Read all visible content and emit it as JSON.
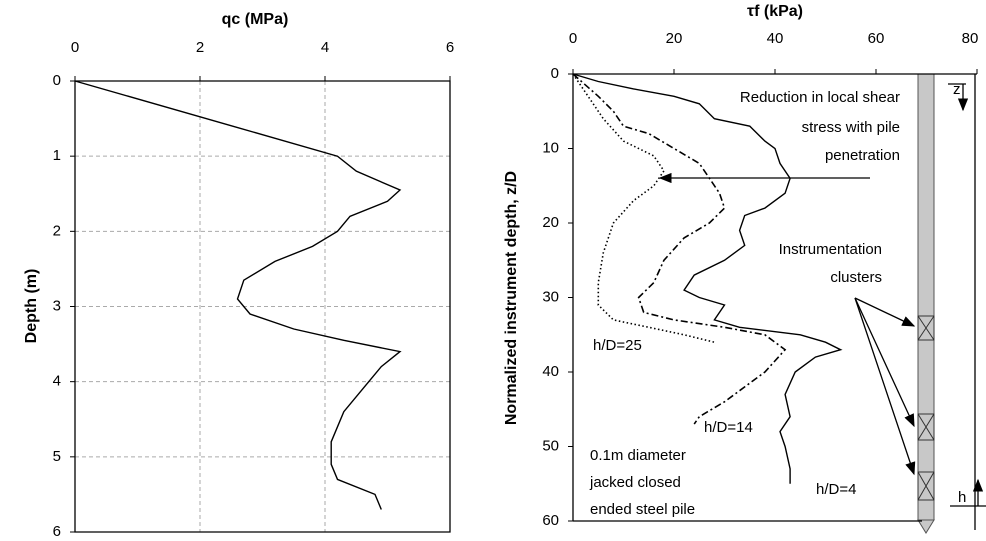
{
  "chart_data": [
    {
      "type": "line",
      "x_label": "qc (MPa)",
      "y_label": "Depth (m)",
      "xlim": [
        0,
        6
      ],
      "xticks": [
        0,
        2,
        4,
        6
      ],
      "ylim": [
        0,
        6
      ],
      "yticks": [
        0,
        1,
        2,
        3,
        4,
        5,
        6
      ],
      "y_inverted": true,
      "x_axis_top": true,
      "grid": true,
      "series": [
        {
          "color": "#000000",
          "dash": "solid",
          "x": [
            0,
            4.2,
            4.5,
            5.2,
            5.0,
            4.4,
            4.2,
            3.8,
            3.2,
            2.7,
            2.6,
            2.8,
            3.5,
            4.3,
            5.2,
            4.9,
            4.6,
            4.3,
            4.1,
            4.1,
            4.2,
            4.8,
            4.9
          ],
          "y": [
            0,
            1.0,
            1.2,
            1.45,
            1.6,
            1.8,
            2.0,
            2.2,
            2.4,
            2.65,
            2.9,
            3.1,
            3.3,
            3.45,
            3.6,
            3.8,
            4.1,
            4.4,
            4.8,
            5.1,
            5.3,
            5.5,
            5.7
          ]
        }
      ]
    },
    {
      "type": "line",
      "x_label": "τf (kPa)",
      "y_label": "Normalized instrument depth, z/D",
      "xlim": [
        0,
        80
      ],
      "xticks": [
        0,
        20,
        40,
        60,
        80
      ],
      "ylim": [
        0,
        60
      ],
      "yticks": [
        0,
        10,
        20,
        30,
        40,
        50,
        60
      ],
      "y_inverted": true,
      "x_axis_top": true,
      "grid": false,
      "series": [
        {
          "name": "h/D=4",
          "color": "#000000",
          "dash": "solid",
          "x": [
            0,
            5,
            12,
            20,
            25,
            28,
            35,
            38,
            40,
            41,
            43,
            42,
            38,
            34,
            33,
            34,
            30,
            24,
            22,
            25,
            30,
            28,
            33,
            45,
            50,
            53,
            48,
            44,
            42,
            43,
            41,
            42,
            43,
            43
          ],
          "y": [
            0,
            1,
            2,
            3,
            4,
            6,
            7,
            9,
            10,
            12,
            14,
            16,
            18,
            19,
            21,
            23,
            25,
            27,
            29,
            30,
            31,
            33,
            34,
            35,
            36,
            37,
            38,
            40,
            43,
            46,
            48,
            50,
            53,
            55
          ]
        },
        {
          "name": "h/D=14",
          "color": "#000000",
          "dash": "dashdot",
          "x": [
            0,
            5,
            8,
            10,
            15,
            20,
            25,
            27,
            29,
            30,
            27,
            22,
            18,
            16,
            13,
            14,
            20,
            30,
            38,
            42,
            38,
            34,
            30,
            25,
            24
          ],
          "y": [
            0,
            3,
            5,
            7,
            8,
            10,
            12,
            14,
            16,
            18,
            20,
            22,
            25,
            28,
            30,
            32,
            33,
            34,
            35,
            37,
            40,
            42,
            44,
            46,
            47
          ]
        },
        {
          "name": "h/D=25",
          "color": "#000000",
          "dash": "dotted",
          "x": [
            0,
            3,
            6,
            10,
            16,
            18,
            16,
            12,
            8,
            6,
            5,
            5,
            8,
            15,
            22,
            28
          ],
          "y": [
            0,
            3,
            6,
            9,
            11,
            13,
            15,
            17,
            20,
            24,
            28,
            31,
            33,
            34,
            35,
            36
          ]
        }
      ],
      "annotations": {
        "reduction": [
          "Reduction in local shear",
          "stress with pile",
          "penetration"
        ],
        "clusters": [
          "Instrumentation",
          "clusters"
        ],
        "pile": [
          "0.1m diameter",
          "jacked closed",
          "ended steel pile"
        ],
        "z": "z",
        "h": "h"
      }
    }
  ]
}
